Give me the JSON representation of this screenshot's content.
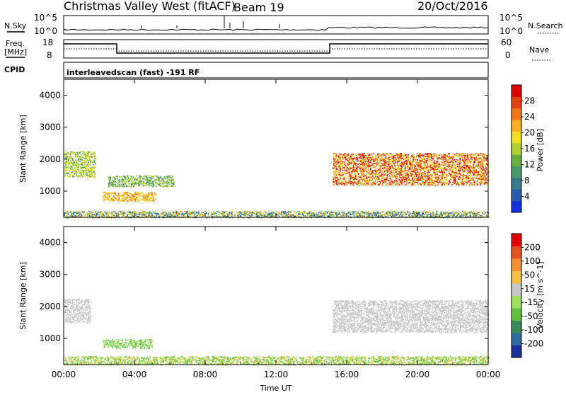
{
  "title": {
    "station": "Christmas Valley West (fitACF)",
    "beam": "Beam 19",
    "date": "20/Oct/2016"
  },
  "header_panels": {
    "nsky_label": "N.Sky",
    "nsearch_label": "N.Search",
    "noise_ticks_left": [
      "10^5",
      "10^0"
    ],
    "noise_ticks_right": [
      "10^5",
      "10^0"
    ],
    "freq_label_line1": "Freq.",
    "freq_label_line2": "[MHz]",
    "freq_ticks": [
      "18",
      "8"
    ],
    "nave_label": "Nave",
    "nave_ticks": [
      "60",
      "0"
    ],
    "cpid_label": "CPID",
    "cpid_text": "interleavedscan (fast) -191 RF"
  },
  "colorbars": {
    "power": {
      "label": "Power [dB]",
      "ticks": [
        "28",
        "24",
        "20",
        "16",
        "12",
        "8",
        "4"
      ],
      "colors": [
        "#1030e0",
        "#2a5ab0",
        "#3b7a8a",
        "#4a9a6a",
        "#6ab040",
        "#b0d030",
        "#f0e020",
        "#f8b020",
        "#f07818",
        "#e84010",
        "#e00000"
      ]
    },
    "velocity": {
      "label": "Velocity [m s^-1]",
      "ticks": [
        "200",
        "100",
        "50",
        "15",
        "-15",
        "-50",
        "-100",
        "-200"
      ],
      "colors": [
        "#1a2f9a",
        "#2f6a9a",
        "#3a8a5a",
        "#62c040",
        "#a0e060",
        "#c8c8c8",
        "#f0c040",
        "#f09030",
        "#e85020",
        "#e00000"
      ]
    }
  },
  "chart_data": [
    {
      "type": "heatmap",
      "name": "power",
      "ylabel": "Slant Range [km]",
      "xlabel": "",
      "xlim": [
        0,
        24
      ],
      "ylim": [
        180,
        4500
      ],
      "yticks": [
        1000,
        2000,
        3000,
        4000
      ],
      "xticks": [
        "00:00",
        "04:00",
        "08:00",
        "12:00",
        "16:00",
        "20:00",
        "00:00"
      ],
      "colorbar": "Power [dB]",
      "scatter_regions": [
        {
          "t": [
            0.0,
            1.8
          ],
          "r": [
            1450,
            2250
          ],
          "color_levels": [
            3,
            5,
            6
          ]
        },
        {
          "t": [
            2.2,
            5.2
          ],
          "r": [
            700,
            980
          ],
          "color_levels": [
            6,
            7,
            8
          ]
        },
        {
          "t": [
            2.5,
            6.2
          ],
          "r": [
            1150,
            1500
          ],
          "color_levels": [
            3,
            5
          ]
        },
        {
          "t": [
            15.2,
            24.0
          ],
          "r": [
            1200,
            2200
          ],
          "color_levels": [
            6,
            8,
            10
          ]
        },
        {
          "t": [
            0.0,
            24.0
          ],
          "r": [
            180,
            380
          ],
          "color_levels": [
            1,
            3,
            5,
            7
          ]
        }
      ]
    },
    {
      "type": "heatmap",
      "name": "velocity",
      "ylabel": "Slant Range [km]",
      "xlabel": "Time UT",
      "xlim": [
        0,
        24
      ],
      "ylim": [
        180,
        4500
      ],
      "yticks": [
        1000,
        2000,
        3000,
        4000
      ],
      "xticks": [
        "00:00",
        "04:00",
        "08:00",
        "12:00",
        "16:00",
        "20:00",
        "00:00"
      ],
      "colorbar": "Velocity [m s^-1]",
      "scatter_regions": [
        {
          "t": [
            0.0,
            1.5
          ],
          "r": [
            1500,
            2250
          ],
          "color_levels": [
            5
          ]
        },
        {
          "t": [
            2.2,
            5.0
          ],
          "r": [
            700,
            980
          ],
          "color_levels": [
            3,
            4
          ]
        },
        {
          "t": [
            15.2,
            24.0
          ],
          "r": [
            1200,
            2200
          ],
          "color_levels": [
            5
          ]
        },
        {
          "t": [
            0.0,
            24.0
          ],
          "r": [
            180,
            450
          ],
          "color_levels": [
            3,
            4,
            6
          ]
        }
      ]
    }
  ]
}
